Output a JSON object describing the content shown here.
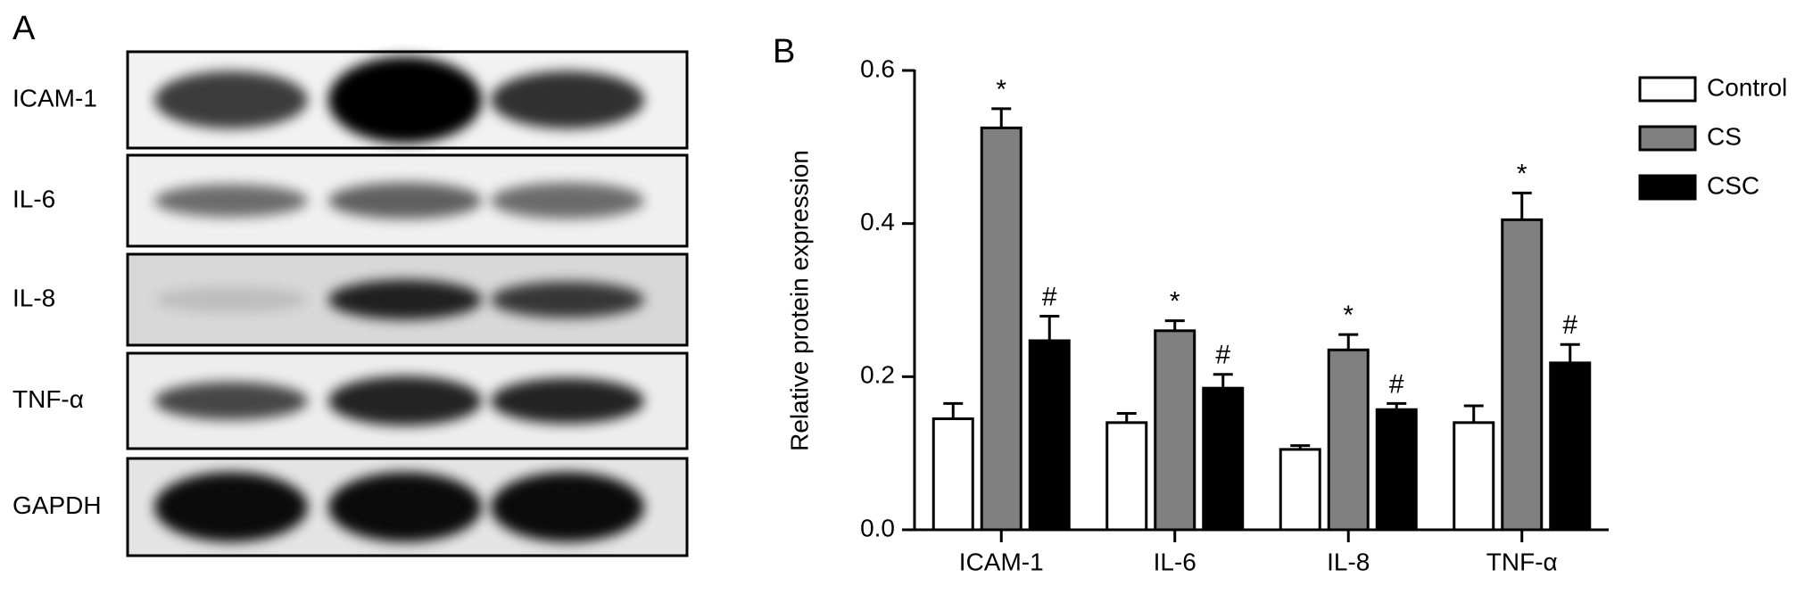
{
  "panel_a": {
    "label": "A",
    "rows": [
      "ICAM-1",
      "IL-6",
      "IL-8",
      "TNF-α",
      "GAPDH"
    ]
  },
  "chart_data": {
    "type": "bar",
    "panel_label": "B",
    "y_label": "Relative protein expression",
    "categories": [
      "ICAM-1",
      "IL-6",
      "IL-8",
      "TNF-α"
    ],
    "series": [
      {
        "name": "Control",
        "color": "#ffffff",
        "values": [
          0.145,
          0.14,
          0.105,
          0.14
        ],
        "errors": [
          0.02,
          0.012,
          0.005,
          0.022
        ]
      },
      {
        "name": "CS",
        "color": "#808080",
        "values": [
          0.525,
          0.26,
          0.235,
          0.405
        ],
        "errors": [
          0.025,
          0.013,
          0.02,
          0.035
        ],
        "annotations": [
          "*",
          "*",
          "*",
          "*"
        ]
      },
      {
        "name": "CSC",
        "color": "#000000",
        "values": [
          0.247,
          0.185,
          0.157,
          0.218
        ],
        "errors": [
          0.032,
          0.018,
          0.008,
          0.024
        ],
        "annotations": [
          "#",
          "#",
          "#",
          "#"
        ]
      }
    ],
    "ylim": [
      0,
      0.6
    ],
    "yticks": [
      {
        "value": 0,
        "label": "0.0"
      },
      0.2,
      0.4,
      0.6
    ],
    "grid": false,
    "legend": "upper right"
  }
}
